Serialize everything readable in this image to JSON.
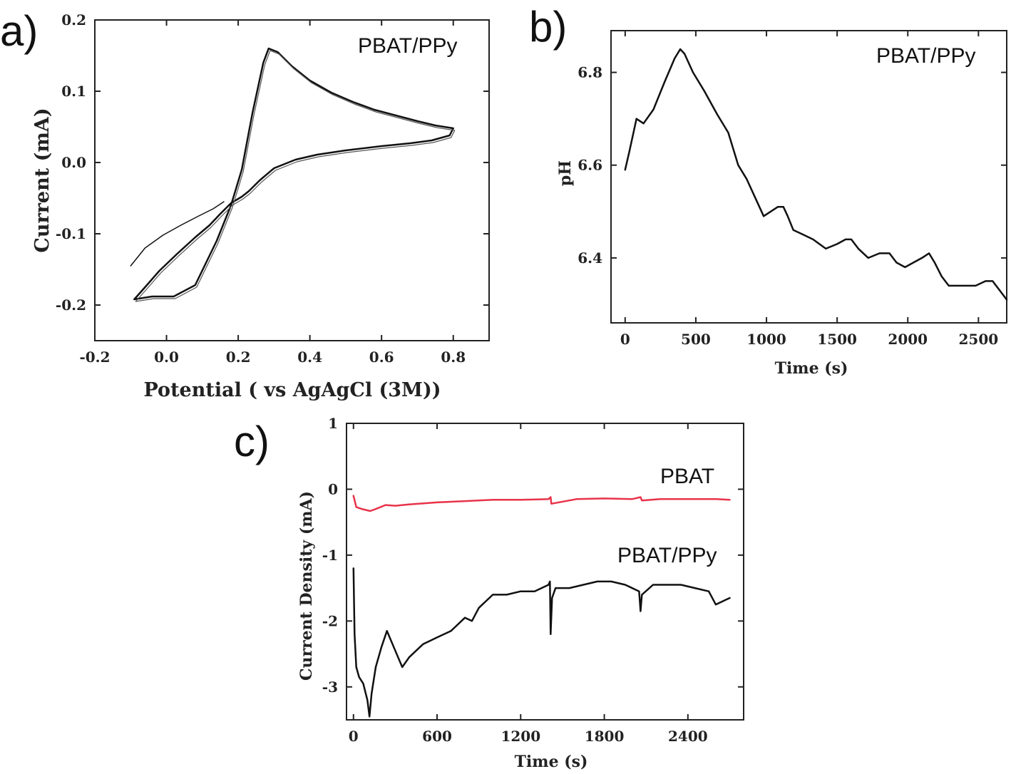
{
  "panels": {
    "a": {
      "letter": "a)",
      "label": "PBAT/PPy"
    },
    "b": {
      "letter": "b)",
      "label": "PBAT/PPy"
    },
    "c": {
      "letter": "c)",
      "label_pbat": "PBAT",
      "label_ppy": "PBAT/PPy"
    }
  },
  "colors": {
    "axis": "#222222",
    "ppy": "#111111",
    "pbat": "#e8334a"
  },
  "chart_data": [
    {
      "id": "a",
      "type": "line",
      "xlabel": "Potential ( vs AgAgCl (3M))",
      "ylabel": "Current (mA)",
      "xlim": [
        -0.2,
        0.9
      ],
      "ylim": [
        -0.25,
        0.2
      ],
      "xticks": [
        -0.2,
        0.0,
        0.2,
        0.4,
        0.6,
        0.8
      ],
      "yticks": [
        -0.2,
        -0.1,
        0.0,
        0.1,
        0.2
      ],
      "xticklabels": [
        "-0.2",
        "0.0",
        "0.2",
        "0.4",
        "0.6",
        "0.8"
      ],
      "yticklabels": [
        "-0.2",
        "-0.1",
        "0.0",
        "0.1",
        "0.2"
      ],
      "series": [
        {
          "values_x": [
            -0.09,
            -0.04,
            0.02,
            0.08,
            0.14,
            0.18,
            0.21,
            0.24,
            0.27,
            0.285,
            0.31,
            0.35,
            0.4,
            0.46,
            0.52,
            0.58,
            0.64,
            0.7,
            0.75,
            0.8,
            0.79,
            0.74,
            0.68,
            0.6,
            0.5,
            0.42,
            0.36,
            0.3,
            0.26,
            0.23,
            0.21,
            0.18,
            0.15,
            0.12,
            0.08,
            0.03,
            -0.02,
            -0.06,
            -0.09
          ],
          "values_y": [
            -0.192,
            -0.188,
            -0.188,
            -0.172,
            -0.11,
            -0.06,
            -0.01,
            0.07,
            0.14,
            0.16,
            0.155,
            0.135,
            0.115,
            0.098,
            0.085,
            0.074,
            0.066,
            0.058,
            0.052,
            0.048,
            0.038,
            0.031,
            0.027,
            0.023,
            0.017,
            0.011,
            0.004,
            -0.008,
            -0.025,
            -0.04,
            -0.048,
            -0.057,
            -0.072,
            -0.088,
            -0.105,
            -0.128,
            -0.152,
            -0.175,
            -0.192
          ]
        },
        {
          "values_x": [
            -0.1,
            -0.06,
            -0.01,
            0.04,
            0.09,
            0.13,
            0.16
          ],
          "values_y": [
            -0.145,
            -0.12,
            -0.102,
            -0.088,
            -0.075,
            -0.065,
            -0.055
          ]
        }
      ]
    },
    {
      "id": "b",
      "type": "line",
      "xlabel": "Time (s)",
      "ylabel": "pH",
      "xlim": [
        -100,
        2700
      ],
      "ylim": [
        6.26,
        6.89
      ],
      "xticks": [
        0,
        500,
        1000,
        1500,
        2000,
        2500
      ],
      "yticks": [
        6.4,
        6.6,
        6.8
      ],
      "xticklabels": [
        "0",
        "500",
        "1000",
        "1500",
        "2000",
        "2500"
      ],
      "yticklabels": [
        "6.4",
        "6.6",
        "6.8"
      ],
      "series": [
        {
          "x": [
            0,
            30,
            80,
            130,
            200,
            280,
            350,
            390,
            420,
            480,
            560,
            650,
            730,
            800,
            860,
            920,
            980,
            1030,
            1080,
            1120,
            1150,
            1190,
            1260,
            1330,
            1420,
            1500,
            1560,
            1600,
            1650,
            1720,
            1800,
            1870,
            1920,
            1980,
            2040,
            2100,
            2150,
            2190,
            2240,
            2290,
            2350,
            2420,
            2480,
            2550,
            2600,
            2650,
            2700
          ],
          "y": [
            6.59,
            6.63,
            6.7,
            6.69,
            6.72,
            6.78,
            6.83,
            6.85,
            6.84,
            6.8,
            6.76,
            6.71,
            6.67,
            6.6,
            6.57,
            6.53,
            6.49,
            6.5,
            6.51,
            6.51,
            6.49,
            6.46,
            6.45,
            6.44,
            6.42,
            6.43,
            6.44,
            6.44,
            6.42,
            6.4,
            6.41,
            6.41,
            6.39,
            6.38,
            6.39,
            6.4,
            6.41,
            6.39,
            6.36,
            6.34,
            6.34,
            6.34,
            6.34,
            6.35,
            6.35,
            6.33,
            6.31
          ]
        }
      ]
    },
    {
      "id": "c",
      "type": "line",
      "xlabel": "Time (s)",
      "ylabel": "Current Density (mA)",
      "xlim": [
        -50,
        2800
      ],
      "ylim": [
        -3.5,
        1
      ],
      "xticks": [
        0,
        600,
        1200,
        1800,
        2400
      ],
      "yticks": [
        -3,
        -2,
        -1,
        0,
        1
      ],
      "xticklabels": [
        "0",
        "600",
        "1200",
        "1800",
        "2400"
      ],
      "yticklabels": [
        "-3",
        "-2",
        "-1",
        "0",
        "1"
      ],
      "series": [
        {
          "name": "PBAT",
          "x": [
            0,
            20,
            60,
            120,
            160,
            230,
            300,
            400,
            600,
            800,
            1000,
            1200,
            1400,
            1415,
            1420,
            1600,
            1800,
            2000,
            2060,
            2070,
            2200,
            2400,
            2600,
            2700
          ],
          "y": [
            -0.1,
            -0.27,
            -0.3,
            -0.33,
            -0.3,
            -0.24,
            -0.25,
            -0.23,
            -0.2,
            -0.18,
            -0.16,
            -0.16,
            -0.15,
            -0.12,
            -0.22,
            -0.15,
            -0.14,
            -0.15,
            -0.12,
            -0.17,
            -0.15,
            -0.15,
            -0.15,
            -0.16
          ]
        },
        {
          "name": "PBAT/PPy",
          "x": [
            0,
            8,
            20,
            40,
            70,
            100,
            115,
            130,
            160,
            200,
            240,
            280,
            320,
            350,
            400,
            500,
            600,
            700,
            800,
            850,
            900,
            1000,
            1100,
            1200,
            1300,
            1350,
            1400,
            1410,
            1415,
            1425,
            1450,
            1550,
            1650,
            1750,
            1850,
            1950,
            2050,
            2060,
            2070,
            2150,
            2250,
            2350,
            2450,
            2550,
            2600,
            2650,
            2700
          ],
          "y": [
            -1.2,
            -2.2,
            -2.7,
            -2.85,
            -2.95,
            -3.2,
            -3.45,
            -3.1,
            -2.7,
            -2.4,
            -2.15,
            -2.35,
            -2.55,
            -2.7,
            -2.55,
            -2.35,
            -2.25,
            -2.15,
            -1.95,
            -2.0,
            -1.8,
            -1.6,
            -1.6,
            -1.55,
            -1.55,
            -1.5,
            -1.45,
            -1.4,
            -2.2,
            -1.65,
            -1.5,
            -1.5,
            -1.45,
            -1.4,
            -1.4,
            -1.45,
            -1.55,
            -1.85,
            -1.6,
            -1.45,
            -1.45,
            -1.45,
            -1.5,
            -1.55,
            -1.75,
            -1.7,
            -1.65
          ]
        }
      ]
    }
  ]
}
